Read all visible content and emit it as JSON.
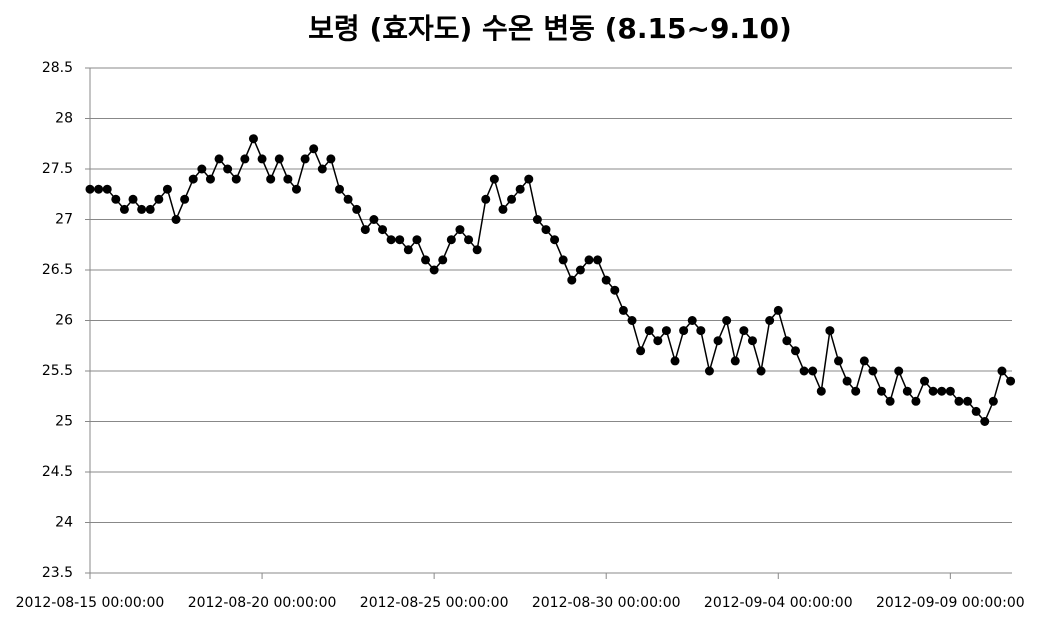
{
  "chart_data": {
    "type": "line",
    "title": "보령 (효자도) 수온 변동 (8.15~9.10)",
    "x": [
      "2012-08-15 00:00:00",
      "2012-08-15 06:00:00",
      "2012-08-15 12:00:00",
      "2012-08-15 18:00:00",
      "2012-08-16 00:00:00",
      "2012-08-16 06:00:00",
      "2012-08-16 12:00:00",
      "2012-08-16 18:00:00",
      "2012-08-17 00:00:00",
      "2012-08-17 06:00:00",
      "2012-08-17 12:00:00",
      "2012-08-17 18:00:00",
      "2012-08-18 00:00:00",
      "2012-08-18 06:00:00",
      "2012-08-18 12:00:00",
      "2012-08-18 18:00:00",
      "2012-08-19 00:00:00",
      "2012-08-19 06:00:00",
      "2012-08-19 12:00:00",
      "2012-08-19 18:00:00",
      "2012-08-20 00:00:00",
      "2012-08-20 06:00:00",
      "2012-08-20 12:00:00",
      "2012-08-20 18:00:00",
      "2012-08-21 00:00:00",
      "2012-08-21 06:00:00",
      "2012-08-21 12:00:00",
      "2012-08-21 18:00:00",
      "2012-08-22 00:00:00",
      "2012-08-22 06:00:00",
      "2012-08-22 12:00:00",
      "2012-08-22 18:00:00",
      "2012-08-23 00:00:00",
      "2012-08-23 06:00:00",
      "2012-08-23 12:00:00",
      "2012-08-23 18:00:00",
      "2012-08-24 00:00:00",
      "2012-08-24 06:00:00",
      "2012-08-24 12:00:00",
      "2012-08-24 18:00:00",
      "2012-08-25 00:00:00",
      "2012-08-25 06:00:00",
      "2012-08-25 12:00:00",
      "2012-08-25 18:00:00",
      "2012-08-26 00:00:00",
      "2012-08-26 06:00:00",
      "2012-08-26 12:00:00",
      "2012-08-26 18:00:00",
      "2012-08-27 00:00:00",
      "2012-08-27 06:00:00",
      "2012-08-27 12:00:00",
      "2012-08-27 18:00:00",
      "2012-08-28 00:00:00",
      "2012-08-28 06:00:00",
      "2012-08-28 12:00:00",
      "2012-08-28 18:00:00",
      "2012-08-29 00:00:00",
      "2012-08-29 06:00:00",
      "2012-08-29 12:00:00",
      "2012-08-29 18:00:00",
      "2012-08-30 00:00:00",
      "2012-08-30 06:00:00",
      "2012-08-30 12:00:00",
      "2012-08-30 18:00:00",
      "2012-08-31 00:00:00",
      "2012-08-31 06:00:00",
      "2012-08-31 12:00:00",
      "2012-08-31 18:00:00",
      "2012-09-01 00:00:00",
      "2012-09-01 06:00:00",
      "2012-09-01 12:00:00",
      "2012-09-01 18:00:00",
      "2012-09-02 00:00:00",
      "2012-09-02 06:00:00",
      "2012-09-02 12:00:00",
      "2012-09-02 18:00:00",
      "2012-09-03 00:00:00",
      "2012-09-03 06:00:00",
      "2012-09-03 12:00:00",
      "2012-09-03 18:00:00",
      "2012-09-04 00:00:00",
      "2012-09-04 06:00:00",
      "2012-09-04 12:00:00",
      "2012-09-04 18:00:00",
      "2012-09-05 00:00:00",
      "2012-09-05 06:00:00",
      "2012-09-05 12:00:00",
      "2012-09-05 18:00:00",
      "2012-09-06 00:00:00",
      "2012-09-06 06:00:00",
      "2012-09-06 12:00:00",
      "2012-09-06 18:00:00",
      "2012-09-07 00:00:00",
      "2012-09-07 06:00:00",
      "2012-09-07 12:00:00",
      "2012-09-07 18:00:00",
      "2012-09-08 00:00:00",
      "2012-09-08 06:00:00",
      "2012-09-08 12:00:00",
      "2012-09-08 18:00:00",
      "2012-09-09 00:00:00",
      "2012-09-09 06:00:00",
      "2012-09-09 12:00:00",
      "2012-09-09 18:00:00",
      "2012-09-10 00:00:00",
      "2012-09-10 06:00:00",
      "2012-09-10 12:00:00",
      "2012-09-10 18:00:00"
    ],
    "values": [
      27.3,
      27.3,
      27.3,
      27.2,
      27.1,
      27.2,
      27.1,
      27.1,
      27.2,
      27.3,
      27.0,
      27.2,
      27.4,
      27.5,
      27.4,
      27.6,
      27.5,
      27.4,
      27.6,
      27.8,
      27.6,
      27.4,
      27.6,
      27.4,
      27.3,
      27.6,
      27.7,
      27.5,
      27.6,
      27.3,
      27.2,
      27.1,
      26.9,
      27.0,
      26.9,
      26.8,
      26.8,
      26.7,
      26.8,
      26.6,
      26.5,
      26.6,
      26.8,
      26.9,
      26.8,
      26.7,
      27.2,
      27.4,
      27.1,
      27.2,
      27.3,
      27.4,
      27.0,
      26.9,
      26.8,
      26.6,
      26.4,
      26.5,
      26.6,
      26.6,
      26.4,
      26.3,
      26.1,
      26.0,
      25.7,
      25.9,
      25.8,
      25.9,
      25.6,
      25.9,
      26.0,
      25.9,
      25.5,
      25.8,
      26.0,
      25.6,
      25.9,
      25.8,
      25.5,
      26.0,
      26.1,
      25.8,
      25.7,
      25.5,
      25.5,
      25.3,
      25.9,
      25.6,
      25.4,
      25.3,
      25.6,
      25.5,
      25.3,
      25.2,
      25.5,
      25.3,
      25.2,
      25.4,
      25.3,
      25.3,
      25.3,
      25.2,
      25.2,
      25.1,
      25.0,
      25.2,
      25.5,
      25.4
    ],
    "color": "#000000",
    "xlim": [
      "2012-08-15 00:00:00",
      "2012-09-10 19:00:00"
    ],
    "xticks": [
      "2012-08-15 00:00:00",
      "2012-08-20 00:00:00",
      "2012-08-25 00:00:00",
      "2012-08-30 00:00:00",
      "2012-09-04 00:00:00",
      "2012-09-09 00:00:00"
    ],
    "ylim": [
      23.5,
      28.5
    ],
    "yticks": [
      23.5,
      24,
      24.5,
      25,
      25.5,
      26,
      26.5,
      27,
      27.5,
      28,
      28.5
    ],
    "grid": true
  }
}
